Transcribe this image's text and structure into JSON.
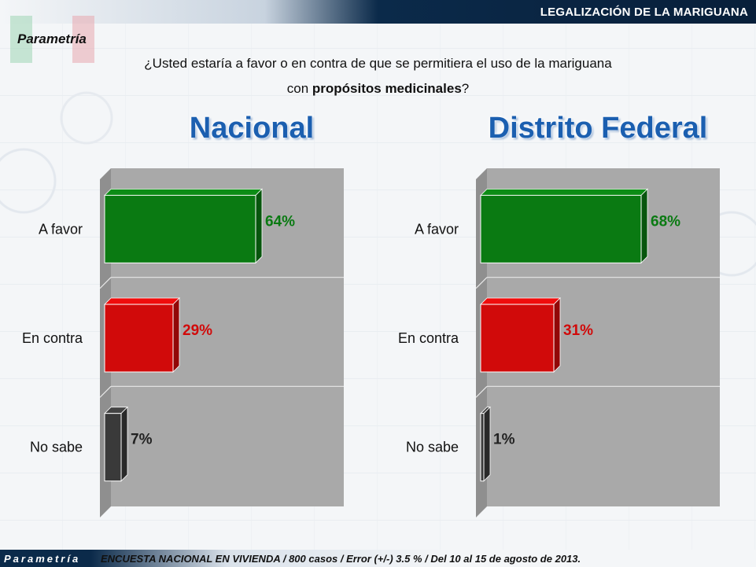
{
  "header": {
    "title": "LEGALIZACIÓN DE LA MARIGUANA",
    "brand": "Parametría"
  },
  "question": {
    "line1": "¿Usted estaría a favor o en contra de que se permitiera el uso de la mariguana",
    "line2_pre": "con ",
    "line2_bold": "propósitos medicinales",
    "line2_post": "?"
  },
  "footer": {
    "logo": "Parametría",
    "text": "ENCUESTA NACIONAL EN VIVIENDA / 800 casos / Error (+/-) 3.5 % / Del 10 al 15 de agosto de 2013."
  },
  "colors": {
    "favor": "#0a7a12",
    "contra": "#d10a0a",
    "nosabe": "#3a3a3a",
    "title": "#1b5fb0"
  },
  "chart_data": [
    {
      "type": "bar",
      "title": "Nacional",
      "categories": [
        "A favor",
        "En contra",
        "No sabe"
      ],
      "values": [
        64,
        29,
        7
      ],
      "labels": [
        "64%",
        "29%",
        "7%"
      ],
      "xlim": [
        0,
        100
      ],
      "orientation": "horizontal"
    },
    {
      "type": "bar",
      "title": "Distrito Federal",
      "categories": [
        "A favor",
        "En contra",
        "No sabe"
      ],
      "values": [
        68,
        31,
        1
      ],
      "labels": [
        "68%",
        "31%",
        "1%"
      ],
      "xlim": [
        0,
        100
      ],
      "orientation": "horizontal"
    }
  ]
}
